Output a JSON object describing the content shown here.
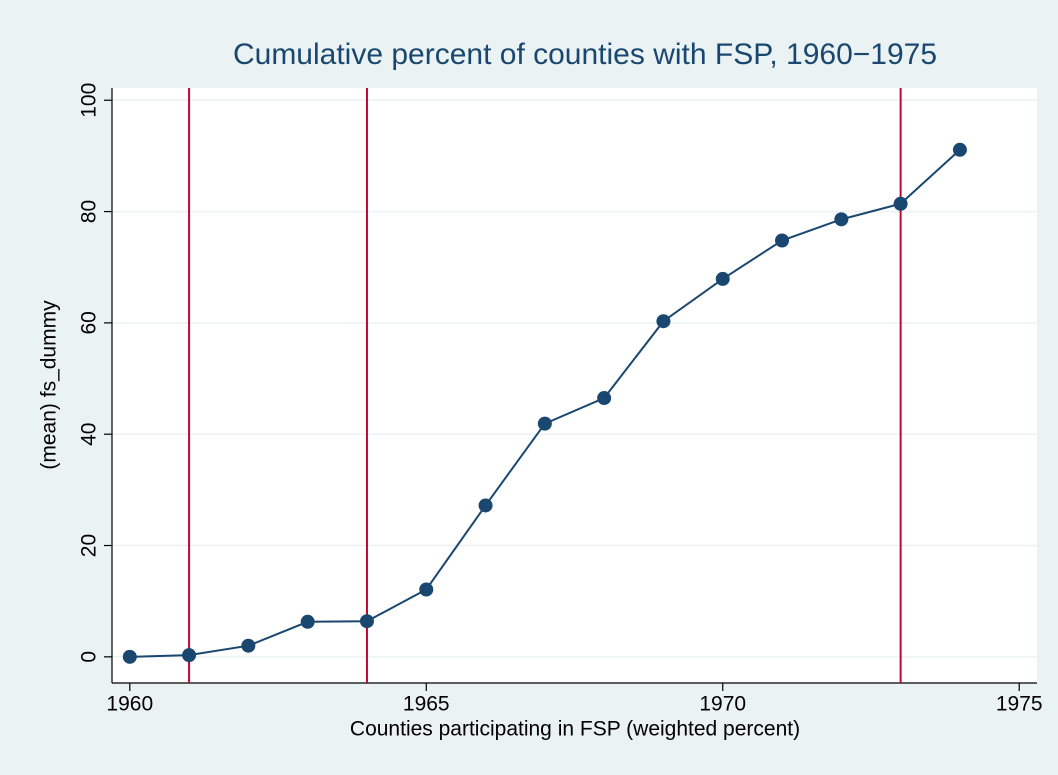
{
  "chart_data": {
    "type": "line",
    "title": "Cumulative percent of counties with FSP, 1960−1975",
    "x_label": "Counties participating in FSP (weighted percent)",
    "y_label": "(mean) fs_dummy",
    "x": [
      1960,
      1961,
      1962,
      1963,
      1964,
      1965,
      1966,
      1967,
      1968,
      1969,
      1970,
      1971,
      1972,
      1973,
      1974
    ],
    "series": [
      {
        "name": "fs_dummy",
        "color": "#1a476f",
        "values": [
          0,
          0.3,
          2,
          6.3,
          6.4,
          12.1,
          27.2,
          41.9,
          46.5,
          60.3,
          67.9,
          74.8,
          78.6,
          81.4,
          91.1
        ]
      }
    ],
    "xlim": [
      1959.7,
      1975.3
    ],
    "ylim": [
      -4.7,
      102.2
    ],
    "xticks": [
      1960,
      1965,
      1970,
      1975
    ],
    "yticks": [
      0,
      20,
      40,
      60,
      80,
      100
    ],
    "grid": true,
    "reference_lines": {
      "x": [
        1961,
        1964,
        1973
      ],
      "color": "#c10534"
    }
  }
}
